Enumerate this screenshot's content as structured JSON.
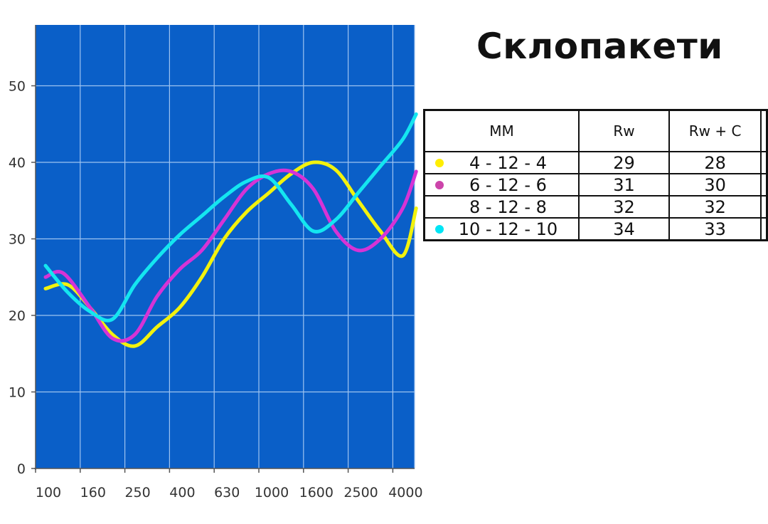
{
  "title": "Склопакети",
  "table": {
    "headers": [
      "ММ",
      "Rw",
      "Rw + C"
    ],
    "rows": [
      {
        "mm": "4 - 12 - 4",
        "rw": "29",
        "rwc": "28",
        "dot_color": "#ffee00"
      },
      {
        "mm": "6 - 12 - 6",
        "rw": "31",
        "rwc": "30",
        "dot_color": "#cc44aa"
      },
      {
        "mm": "8 - 12 - 8",
        "rw": "32",
        "rwc": "32",
        "dot_color": null
      },
      {
        "mm": "10 - 12 - 10",
        "rw": "34",
        "rwc": "33",
        "dot_color": "#00e5f5"
      }
    ]
  },
  "chart_data": {
    "type": "line",
    "x": [
      "100",
      "160",
      "250",
      "400",
      "630",
      "1000",
      "1600",
      "2500",
      "4000"
    ],
    "y_ticks": [
      "0",
      "10",
      "20",
      "30",
      "40",
      "50"
    ],
    "ylim": [
      0,
      55
    ],
    "grid": true,
    "background": "#0a5fc8",
    "grid_color": "#9ec3f0",
    "series": [
      {
        "label": "4 - 12 - 4",
        "color": "#f2f20d",
        "points": [
          [
            0,
            23.5
          ],
          [
            0.5,
            24
          ],
          [
            1,
            21
          ],
          [
            1.5,
            17.5
          ],
          [
            2,
            16
          ],
          [
            2.5,
            18.5
          ],
          [
            3,
            21
          ],
          [
            3.5,
            25
          ],
          [
            4,
            30
          ],
          [
            4.5,
            33.5
          ],
          [
            5,
            36
          ],
          [
            5.5,
            38.5
          ],
          [
            6,
            40
          ],
          [
            6.5,
            39
          ],
          [
            7,
            35
          ],
          [
            7.5,
            31
          ],
          [
            8,
            27.8
          ],
          [
            8.3,
            34
          ]
        ]
      },
      {
        "label": "6 - 12 - 6",
        "color": "#d633d6",
        "points": [
          [
            0,
            25
          ],
          [
            0.4,
            25.5
          ],
          [
            1,
            21
          ],
          [
            1.5,
            17
          ],
          [
            2,
            17.5
          ],
          [
            2.5,
            22.5
          ],
          [
            3,
            26
          ],
          [
            3.5,
            28.5
          ],
          [
            4,
            32.5
          ],
          [
            4.5,
            36.5
          ],
          [
            5,
            38.5
          ],
          [
            5.5,
            38.8
          ],
          [
            6,
            36.5
          ],
          [
            6.5,
            31
          ],
          [
            7,
            28.5
          ],
          [
            7.5,
            30
          ],
          [
            8,
            34
          ],
          [
            8.3,
            38.8
          ]
        ]
      },
      {
        "label": "10 - 12 - 10",
        "color": "#14e6f0",
        "points": [
          [
            0,
            26.5
          ],
          [
            0.5,
            23
          ],
          [
            1,
            20.5
          ],
          [
            1.5,
            19.5
          ],
          [
            2,
            24
          ],
          [
            2.5,
            27.5
          ],
          [
            3,
            30.5
          ],
          [
            3.5,
            33
          ],
          [
            4,
            35.5
          ],
          [
            4.5,
            37.5
          ],
          [
            5,
            38
          ],
          [
            5.5,
            34.5
          ],
          [
            6,
            31
          ],
          [
            6.5,
            32.5
          ],
          [
            7,
            36
          ],
          [
            7.5,
            39.5
          ],
          [
            8,
            43
          ],
          [
            8.3,
            46.3
          ]
        ]
      }
    ]
  }
}
